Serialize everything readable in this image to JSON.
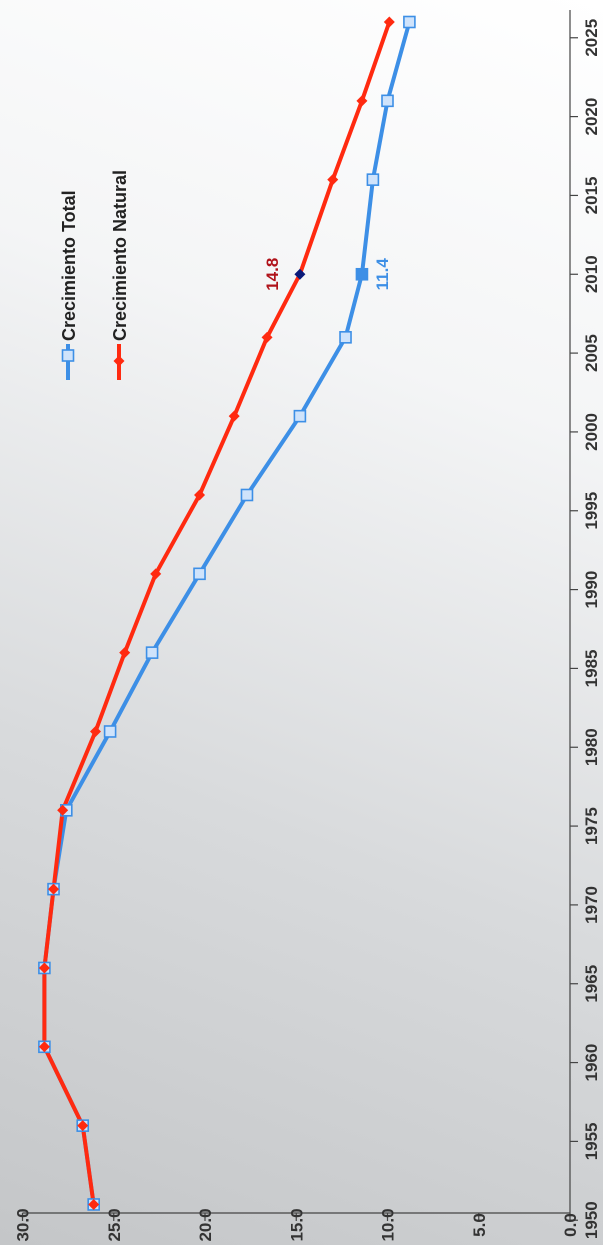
{
  "chart_data": {
    "type": "line",
    "orientation": "rotated-90-ccw",
    "x": [
      1950,
      1955,
      1960,
      1965,
      1970,
      1975,
      1980,
      1985,
      1990,
      1995,
      2000,
      2005,
      2010,
      2015,
      2020,
      2025
    ],
    "x_ticks": [
      "1950",
      "1955",
      "1960",
      "1965",
      "1970",
      "1975",
      "1980",
      "1985",
      "1990",
      "1995",
      "2000",
      "2005",
      "2010",
      "2015",
      "2020",
      "2025"
    ],
    "y_ticks": [
      "0.0",
      "5.0",
      "10.0",
      "15.0",
      "20.0",
      "25.0",
      "30.0"
    ],
    "ylim": [
      0,
      30
    ],
    "xlim": [
      1949,
      2026
    ],
    "legend_position": "top-right",
    "grid": false,
    "series": [
      {
        "name": "Crecimiento Total",
        "color": "#3d8fe6",
        "marker": "square",
        "x": [
          1951,
          1956,
          1961,
          1966,
          1971,
          1976,
          1981,
          1986,
          1991,
          1996,
          2001,
          2006,
          2010,
          2016,
          2021,
          2026
        ],
        "values": [
          26.1,
          26.7,
          28.8,
          28.8,
          28.3,
          27.6,
          25.2,
          22.9,
          20.3,
          17.7,
          14.8,
          12.3,
          11.4,
          10.8,
          10.0,
          8.8
        ]
      },
      {
        "name": "Crecimiento Natural",
        "color": "#ff2a10",
        "marker": "diamond",
        "x": [
          1951,
          1956,
          1961,
          1966,
          1971,
          1976,
          1981,
          1986,
          1991,
          1996,
          2001,
          2006,
          2010,
          2016,
          2021,
          2026
        ],
        "values": [
          26.1,
          26.7,
          28.8,
          28.8,
          28.3,
          27.8,
          26.0,
          24.4,
          22.7,
          20.3,
          18.4,
          16.6,
          14.8,
          13.0,
          11.4,
          9.9
        ]
      }
    ],
    "annotations": [
      {
        "series": "Crecimiento Natural",
        "x": 2010,
        "value": 14.8,
        "text": "14.8",
        "color": "#b0121a"
      },
      {
        "series": "Crecimiento Total",
        "x": 2010,
        "value": 11.4,
        "text": "11.4",
        "color": "#3d8fe6"
      }
    ]
  }
}
